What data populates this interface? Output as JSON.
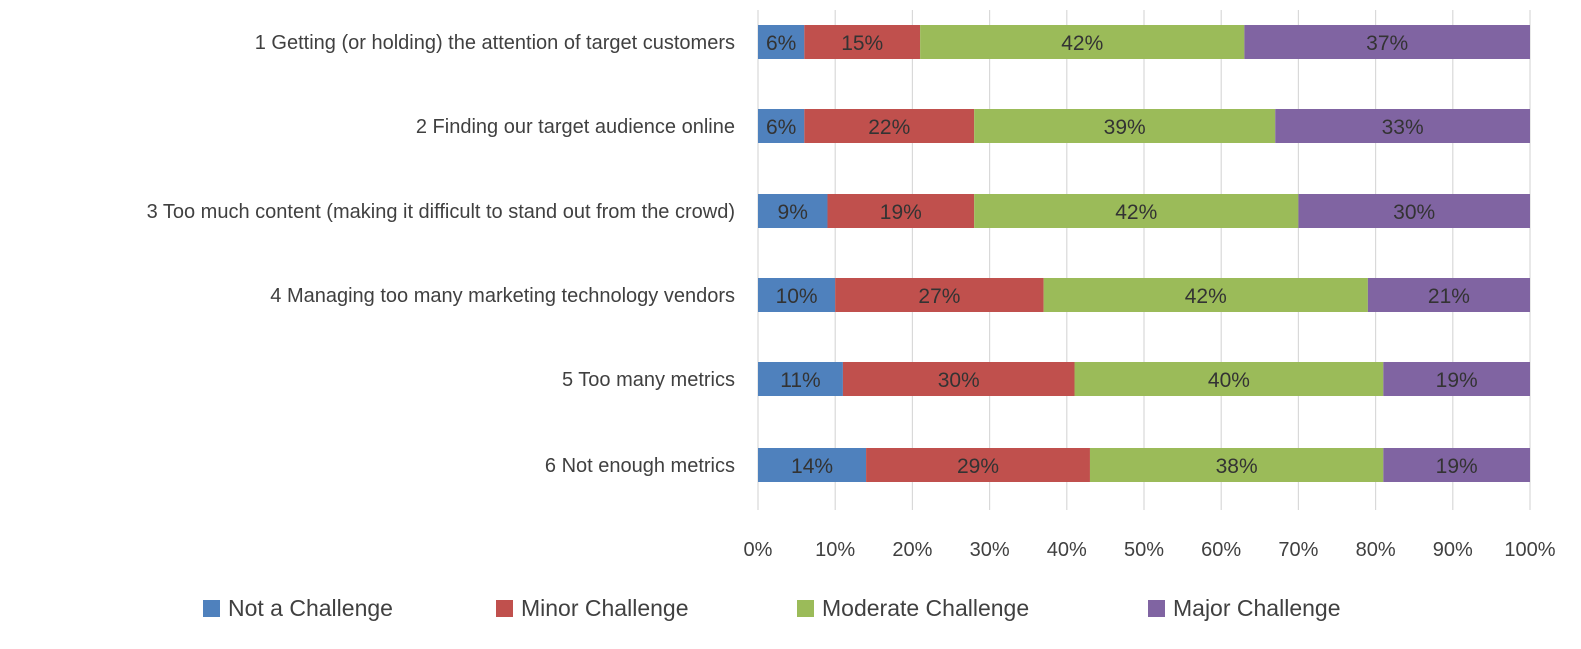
{
  "chart_data": {
    "type": "bar",
    "orientation": "horizontal",
    "stacked": "percent",
    "categories": [
      "1 Getting (or holding) the attention of target customers",
      "2 Finding our target audience online",
      "3 Too much content (making it difficult to stand out from the crowd)",
      "4 Managing too many marketing technology vendors",
      "5 Too many metrics",
      "6 Not enough metrics"
    ],
    "series": [
      {
        "name": "Not a Challenge",
        "color": "#4f81bd",
        "values": [
          6,
          6,
          9,
          10,
          11,
          14
        ],
        "labels": [
          "6%",
          "6%",
          "9%",
          "10%",
          "11%",
          "14%"
        ]
      },
      {
        "name": "Minor Challenge",
        "color": "#c0504d",
        "values": [
          15,
          22,
          19,
          27,
          30,
          29
        ],
        "labels": [
          "15%",
          "22%",
          "19%",
          "27%",
          "30%",
          "29%"
        ]
      },
      {
        "name": "Moderate Challenge",
        "color": "#9bbb59",
        "values": [
          42,
          39,
          42,
          42,
          40,
          38
        ],
        "labels": [
          "42%",
          "39%",
          "42%",
          "42%",
          "40%",
          "38%"
        ]
      },
      {
        "name": "Major Challenge",
        "color": "#8064a2",
        "values": [
          37,
          33,
          30,
          21,
          19,
          19
        ],
        "labels": [
          "37%",
          "33%",
          "30%",
          "21%",
          "19%",
          "19%"
        ]
      }
    ],
    "x_ticks": [
      "0%",
      "10%",
      "20%",
      "30%",
      "40%",
      "50%",
      "60%",
      "70%",
      "80%",
      "90%",
      "100%"
    ],
    "xlim": [
      0,
      100
    ],
    "grid": true,
    "legend": "bottom",
    "title": "",
    "xlabel": "",
    "ylabel": ""
  }
}
